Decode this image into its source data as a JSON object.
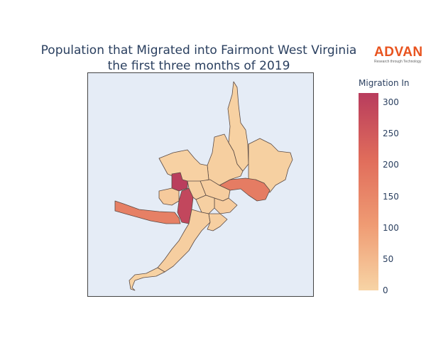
{
  "title": {
    "line1": "Population that Migrated into Fairmont West Virginia",
    "line2": "the first three months of 2019"
  },
  "logo": {
    "word": "ADVAN",
    "tagline": "Research through Technology"
  },
  "colorbar": {
    "title": "Migration In",
    "min": 0,
    "max": 315,
    "ticks": [
      0,
      50,
      100,
      150,
      200,
      250,
      300
    ],
    "colors": [
      "#f7d4a5",
      "#ef9b73",
      "#e06c5b",
      "#b83c5d"
    ]
  },
  "map": {
    "background": "#e5ecf6",
    "border_color": "#444444",
    "regions": [
      {
        "id": "north-spur",
        "value": 6
      },
      {
        "id": "northeast",
        "value": 8
      },
      {
        "id": "east-river",
        "value": 175
      },
      {
        "id": "central-north",
        "value": 10
      },
      {
        "id": "north-west",
        "value": 5
      },
      {
        "id": "hotspot-north",
        "value": 310
      },
      {
        "id": "hotspot-south",
        "value": 290
      },
      {
        "id": "west-arm",
        "value": 165
      },
      {
        "id": "central-east",
        "value": 12
      },
      {
        "id": "central-a",
        "value": 9
      },
      {
        "id": "central-b",
        "value": 14
      },
      {
        "id": "central-c",
        "value": 7
      },
      {
        "id": "south",
        "value": 11
      },
      {
        "id": "southwest-tail",
        "value": 4
      },
      {
        "id": "southeast",
        "value": 9
      },
      {
        "id": "west-small",
        "value": 18
      }
    ]
  }
}
